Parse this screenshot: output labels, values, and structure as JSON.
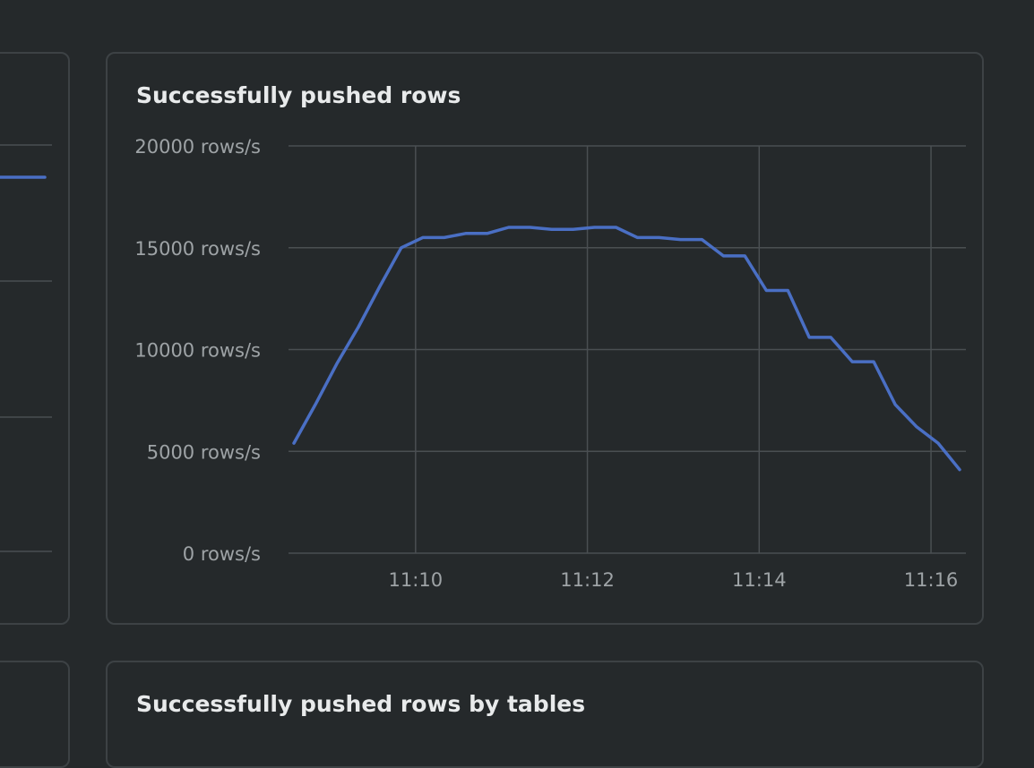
{
  "panels": {
    "main_title": "Successfully pushed rows",
    "bottom_title": "Successfully pushed rows by tables"
  },
  "colors": {
    "background": "#25292b",
    "panel_border": "#3d4245",
    "grid": "#4a4f52",
    "series": "#4a6fc4",
    "title_text": "#e8eaeb",
    "tick_text": "#9ea3a6"
  },
  "chart_data": {
    "type": "line",
    "title": "Successfully pushed rows",
    "xlabel": "",
    "ylabel": "",
    "y_unit": "rows/s",
    "ylim": [
      0,
      20000
    ],
    "y_ticks": [
      0,
      5000,
      10000,
      15000,
      20000
    ],
    "y_tick_labels": [
      "0 rows/s",
      "5000 rows/s",
      "10000 rows/s",
      "15000 rows/s",
      "20000 rows/s"
    ],
    "x_ticks": [
      "11:10",
      "11:12",
      "11:14",
      "11:16"
    ],
    "xlim_minutes": [
      "11:08:35",
      "11:16:20"
    ],
    "grid": true,
    "legend": "none",
    "series": [
      {
        "x": [
          "11:08:35",
          "11:08:50",
          "11:09:05",
          "11:09:20",
          "11:09:35",
          "11:09:50",
          "11:10:05",
          "11:10:20",
          "11:10:35",
          "11:10:50",
          "11:11:05",
          "11:11:20",
          "11:11:35",
          "11:11:50",
          "11:12:05",
          "11:12:20",
          "11:12:35",
          "11:12:50",
          "11:13:05",
          "11:13:20",
          "11:13:35",
          "11:13:50",
          "11:14:05",
          "11:14:20",
          "11:14:35",
          "11:14:50",
          "11:15:05",
          "11:15:20",
          "11:15:35",
          "11:15:50",
          "11:16:05",
          "11:16:20"
        ],
        "values": [
          5400,
          7300,
          9300,
          11100,
          13100,
          15000,
          15500,
          15500,
          15700,
          15700,
          16000,
          16000,
          15900,
          15900,
          16000,
          16000,
          15500,
          15500,
          15400,
          15400,
          14600,
          14600,
          12900,
          12900,
          10600,
          10600,
          9400,
          9400,
          7300,
          6200,
          5400,
          4100
        ]
      }
    ]
  },
  "left_panel_fragment": {
    "type": "line",
    "values": [
      0.24
    ]
  }
}
